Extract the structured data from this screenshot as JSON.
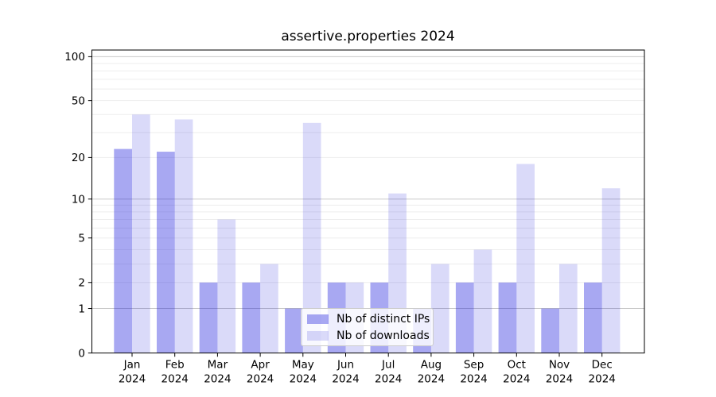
{
  "figure": {
    "title": "assertive.properties 2024"
  },
  "chart_data": {
    "type": "bar",
    "title": "assertive.properties 2024",
    "categories": [
      "Jan 2024",
      "Feb 2024",
      "Mar 2024",
      "Apr 2024",
      "May 2024",
      "Jun 2024",
      "Jul 2024",
      "Aug 2024",
      "Sep 2024",
      "Oct 2024",
      "Nov 2024",
      "Dec 2024"
    ],
    "series": [
      {
        "name": "Nb of distinct IPs",
        "values": [
          23,
          22,
          2,
          2,
          1,
          2,
          2,
          1,
          2,
          2,
          1,
          2
        ],
        "color_hex": "#1919dc",
        "alpha": 0.38
      },
      {
        "name": "Nb of downloads",
        "values": [
          40,
          37,
          7,
          3,
          35,
          2,
          11,
          3,
          4,
          18,
          3,
          12
        ],
        "color_hex": "#1919dc",
        "alpha": 0.16
      }
    ],
    "yscale": "log1p",
    "ylim": [
      0,
      111
    ],
    "y_ticks": [
      0,
      1,
      2,
      5,
      10,
      20,
      50,
      100
    ],
    "y_gridline_values": [
      1,
      2,
      3,
      4,
      5,
      6,
      7,
      8,
      9,
      10,
      20,
      30,
      40,
      50,
      60,
      70,
      80,
      90,
      100
    ],
    "y_major_gridlines": [
      1,
      10,
      100
    ],
    "grid": true,
    "legend_position": "lower center",
    "xlabel": "",
    "ylabel": ""
  },
  "legend": {
    "items": [
      {
        "label": "Nb of distinct IPs"
      },
      {
        "label": "Nb of downloads"
      }
    ]
  },
  "colors": {
    "ips_bar_on_white": "#a8a8f2",
    "downloads_bar_on_white": "#dadaf9",
    "grid_major": "#c8c8c8",
    "grid_minor": "#ededed",
    "axis_spine": "#000000",
    "text": "#000000",
    "legend_border": "#cccccc"
  }
}
